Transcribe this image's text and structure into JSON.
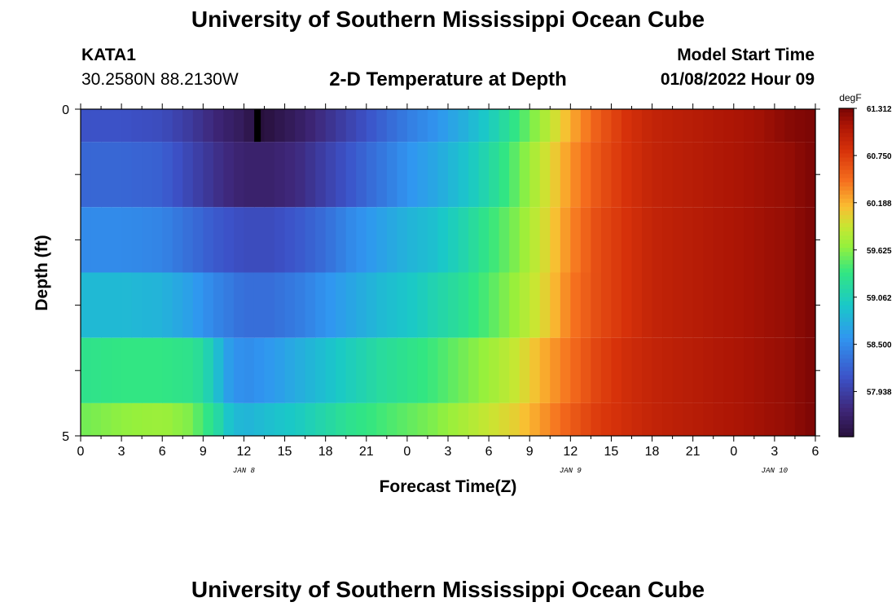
{
  "header": {
    "title": "University of Southern Mississippi Ocean Cube",
    "station": "KATA1",
    "coords": "30.2580N  88.2130W",
    "subtitle": "2-D Temperature at Depth",
    "model_start_label": "Model Start Time",
    "model_start_value": "01/08/2022 Hour 09"
  },
  "footer": {
    "title": "University of Southern Mississippi Ocean Cube"
  },
  "chart_data": {
    "type": "heatmap",
    "title": "2-D Temperature at Depth",
    "xlabel": "Forecast Time(Z)",
    "ylabel": "Depth (ft)",
    "x_ticks": [
      "0",
      "3",
      "6",
      "9",
      "12",
      "15",
      "18",
      "21",
      "0",
      "3",
      "6",
      "9",
      "12",
      "15",
      "18",
      "21",
      "0",
      "3",
      "6"
    ],
    "x_hours": [
      0,
      3,
      6,
      9,
      12,
      15,
      18,
      21,
      24,
      27,
      30,
      33,
      36,
      39,
      42,
      45,
      48,
      51,
      54
    ],
    "date_labels": [
      {
        "label": "JAN 8",
        "hour": 12
      },
      {
        "label": "JAN 9",
        "hour": 36
      },
      {
        "label": "JAN 10",
        "hour": 51
      }
    ],
    "y_ticks": [
      "0",
      "5"
    ],
    "y_range": [
      0,
      5
    ],
    "depth_bands": [
      [
        0,
        0.5
      ],
      [
        0.5,
        1.5
      ],
      [
        1.5,
        2.5
      ],
      [
        2.5,
        3.5
      ],
      [
        3.5,
        4.5
      ],
      [
        4.5,
        5
      ]
    ],
    "x_range": [
      0,
      54
    ],
    "colorbar": {
      "unit": "degF",
      "min": 57.4,
      "max": 61.312,
      "labels": [
        "61.312",
        "60.750",
        "60.188",
        "59.625",
        "59.062",
        "58.500",
        "57.938"
      ],
      "label_values": [
        61.312,
        60.75,
        60.188,
        59.625,
        59.062,
        58.5,
        57.938
      ]
    },
    "series": [
      {
        "depth_band": "0-0.5 ft",
        "times": [
          0,
          3,
          6,
          8,
          10,
          12,
          13,
          14,
          16,
          18,
          20,
          22,
          24,
          26,
          28,
          30,
          32,
          34,
          36,
          38,
          40,
          42,
          44,
          46,
          48,
          50,
          52,
          54
        ],
        "values": [
          58.1,
          58.1,
          58.05,
          57.9,
          57.7,
          57.55,
          57.4,
          57.45,
          57.6,
          57.8,
          58.0,
          58.2,
          58.4,
          58.55,
          58.75,
          59.0,
          59.35,
          59.75,
          60.2,
          60.55,
          60.8,
          60.95,
          61.0,
          61.05,
          61.1,
          61.15,
          61.25,
          61.3
        ]
      },
      {
        "depth_band": "0.5-1.5 ft",
        "times": [
          0,
          3,
          6,
          8,
          10,
          12,
          14,
          16,
          18,
          20,
          22,
          24,
          26,
          28,
          30,
          32,
          34,
          36,
          38,
          40,
          42,
          44,
          46,
          48,
          50,
          52,
          54
        ],
        "values": [
          58.25,
          58.25,
          58.2,
          58.0,
          57.8,
          57.65,
          57.65,
          57.75,
          57.95,
          58.15,
          58.35,
          58.55,
          58.7,
          58.9,
          59.15,
          59.5,
          59.9,
          60.3,
          60.6,
          60.8,
          60.95,
          61.0,
          61.05,
          61.1,
          61.15,
          61.2,
          61.3
        ]
      },
      {
        "depth_band": "1.5-2.5 ft",
        "times": [
          0,
          3,
          6,
          8,
          10,
          12,
          14,
          16,
          18,
          20,
          22,
          24,
          26,
          28,
          30,
          32,
          34,
          36,
          38,
          40,
          42,
          44,
          46,
          48,
          50,
          52,
          54
        ],
        "values": [
          58.5,
          58.5,
          58.45,
          58.3,
          58.15,
          58.05,
          58.05,
          58.15,
          58.3,
          58.5,
          58.65,
          58.8,
          58.9,
          59.1,
          59.35,
          59.6,
          59.95,
          60.35,
          60.65,
          60.8,
          60.95,
          61.0,
          61.05,
          61.1,
          61.15,
          61.2,
          61.3
        ]
      },
      {
        "depth_band": "2.5-3.5 ft",
        "times": [
          0,
          3,
          6,
          8,
          10,
          12,
          14,
          16,
          18,
          20,
          22,
          24,
          26,
          28,
          30,
          32,
          34,
          36,
          38,
          40,
          42,
          44,
          46,
          48,
          50,
          52,
          54
        ],
        "values": [
          58.85,
          58.85,
          58.8,
          58.65,
          58.45,
          58.3,
          58.3,
          58.4,
          58.55,
          58.7,
          58.85,
          58.95,
          59.1,
          59.25,
          59.45,
          59.7,
          60.0,
          60.4,
          60.65,
          60.8,
          60.95,
          61.0,
          61.05,
          61.1,
          61.15,
          61.2,
          61.3
        ]
      },
      {
        "depth_band": "3.5-4.5 ft",
        "times": [
          0,
          3,
          6,
          8,
          9,
          10,
          11,
          12,
          14,
          16,
          18,
          20,
          22,
          24,
          26,
          28,
          30,
          32,
          34,
          36,
          38,
          40,
          42,
          44,
          46,
          48,
          50,
          52,
          54
        ],
        "values": [
          59.3,
          59.35,
          59.35,
          59.3,
          59.2,
          58.9,
          58.6,
          58.5,
          58.6,
          58.75,
          58.9,
          59.05,
          59.2,
          59.3,
          59.4,
          59.55,
          59.7,
          59.9,
          60.2,
          60.45,
          60.7,
          60.85,
          60.95,
          61.0,
          61.05,
          61.1,
          61.15,
          61.2,
          61.3
        ]
      },
      {
        "depth_band": "4.5-5 ft",
        "times": [
          0,
          3,
          6,
          8,
          9,
          10,
          11,
          12,
          14,
          16,
          18,
          20,
          22,
          24,
          26,
          28,
          30,
          32,
          34,
          36,
          38,
          40,
          42,
          44,
          46,
          48,
          50,
          52,
          54
        ],
        "values": [
          59.55,
          59.65,
          59.7,
          59.6,
          59.4,
          59.2,
          58.9,
          58.8,
          58.9,
          59.0,
          59.15,
          59.3,
          59.4,
          59.5,
          59.6,
          59.75,
          59.9,
          60.05,
          60.3,
          60.55,
          60.75,
          60.85,
          60.95,
          61.0,
          61.05,
          61.1,
          61.15,
          61.2,
          61.3
        ]
      }
    ]
  }
}
